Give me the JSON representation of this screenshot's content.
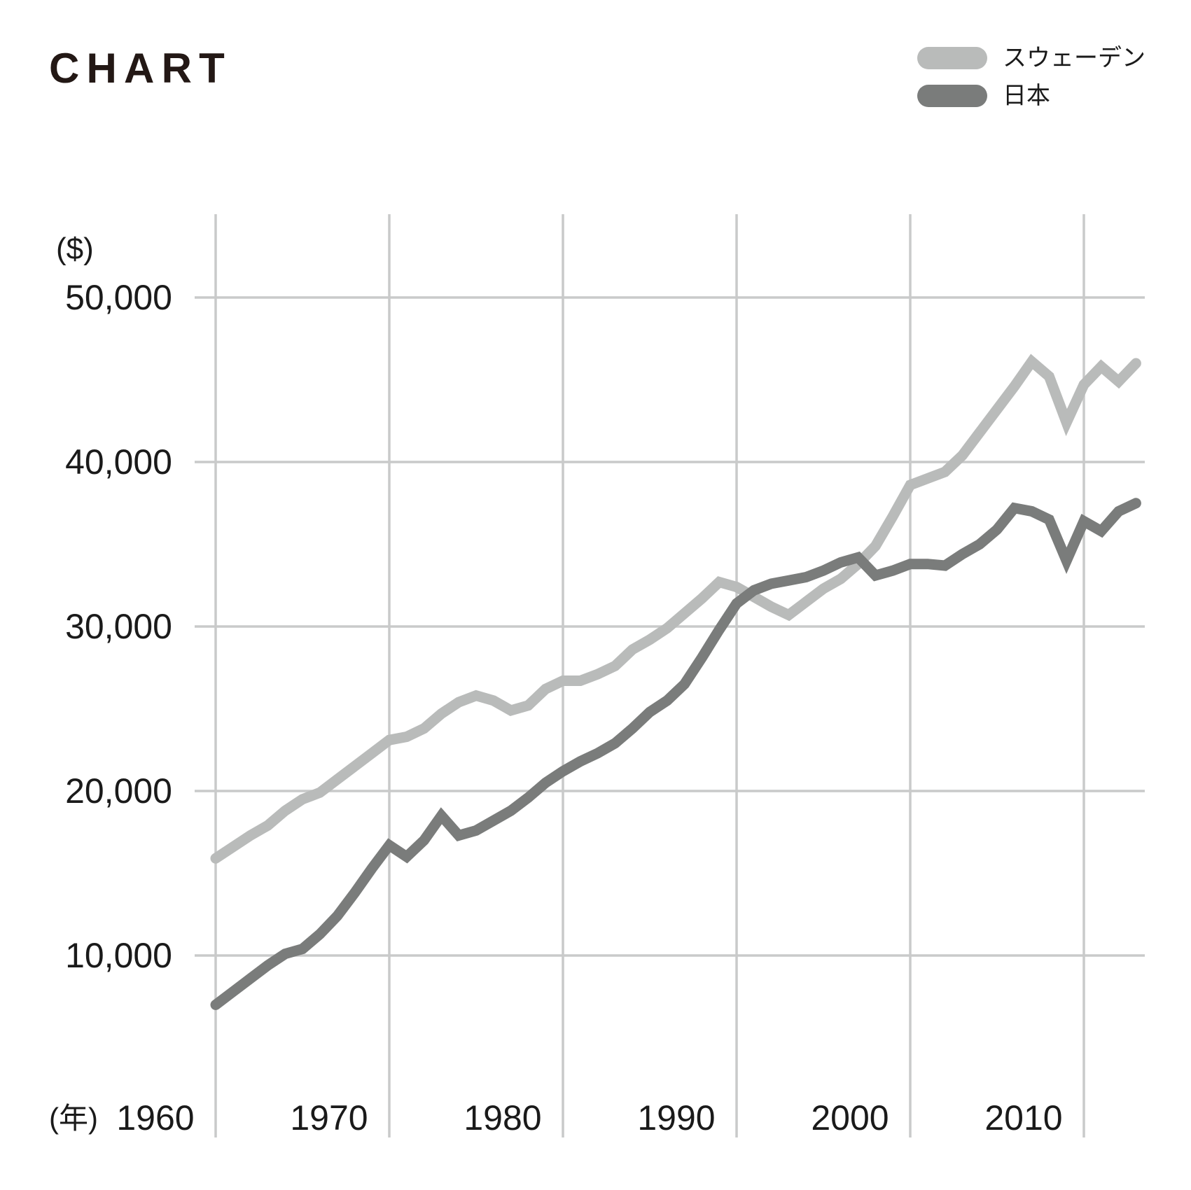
{
  "logo": "CHART",
  "colors": {
    "background": "#ffffff",
    "grid": "#c9caca",
    "text": "#1a1a1a",
    "logo": "#231815",
    "sweden": "#b9bbba",
    "japan": "#7a7c7b"
  },
  "legend": {
    "items": [
      {
        "label": "スウェーデン",
        "color_key": "sweden"
      },
      {
        "label": "日本",
        "color_key": "japan"
      }
    ]
  },
  "axes": {
    "y_unit_label": "($)",
    "x_unit_label": "(年)",
    "y_ticks": [
      {
        "value": 50000,
        "label": "50,000"
      },
      {
        "value": 40000,
        "label": "40,000"
      },
      {
        "value": 30000,
        "label": "30,000"
      },
      {
        "value": 20000,
        "label": "20,000"
      },
      {
        "value": 10000,
        "label": "10,000"
      }
    ],
    "x_ticks": [
      {
        "year": 1960,
        "label": "1960"
      },
      {
        "year": 1970,
        "label": "1970"
      },
      {
        "year": 1980,
        "label": "1980"
      },
      {
        "year": 1990,
        "label": "1990"
      },
      {
        "year": 2000,
        "label": "2000"
      },
      {
        "year": 2010,
        "label": "2010"
      }
    ]
  },
  "chart_data": {
    "type": "line",
    "title": "",
    "xlabel": "(年)",
    "ylabel": "($)",
    "x_start_year": 1960,
    "x_end_year": 2013,
    "ylim": [
      5000,
      52000
    ],
    "grid": true,
    "legend_position": "top-right",
    "x": [
      1960,
      1961,
      1962,
      1963,
      1964,
      1965,
      1966,
      1967,
      1968,
      1969,
      1970,
      1971,
      1972,
      1973,
      1974,
      1975,
      1976,
      1977,
      1978,
      1979,
      1980,
      1981,
      1982,
      1983,
      1984,
      1985,
      1986,
      1987,
      1988,
      1989,
      1990,
      1991,
      1992,
      1993,
      1994,
      1995,
      1996,
      1997,
      1998,
      1999,
      2000,
      2001,
      2002,
      2003,
      2004,
      2005,
      2006,
      2007,
      2008,
      2009,
      2010,
      2011,
      2012,
      2013
    ],
    "series": [
      {
        "name": "スウェーデン",
        "color_key": "sweden",
        "values": [
          15900,
          16600,
          17300,
          17900,
          18800,
          19500,
          19900,
          20700,
          21500,
          22300,
          23100,
          23300,
          23800,
          24700,
          25400,
          25800,
          25500,
          24900,
          25200,
          26200,
          26700,
          26700,
          27100,
          27600,
          28600,
          29200,
          29900,
          30800,
          31700,
          32700,
          32400,
          31800,
          31200,
          30700,
          31500,
          32300,
          32900,
          33800,
          34900,
          36700,
          38600,
          39000,
          39400,
          40400,
          41800,
          43200,
          44600,
          46100,
          45200,
          42400,
          44700,
          45800,
          44900,
          46000
        ]
      },
      {
        "name": "日本",
        "color_key": "japan",
        "values": [
          7000,
          7800,
          8600,
          9400,
          10100,
          10400,
          11300,
          12400,
          13800,
          15300,
          16700,
          16000,
          17000,
          18500,
          17300,
          17600,
          18200,
          18800,
          19600,
          20500,
          21200,
          21800,
          22300,
          22900,
          23800,
          24800,
          25500,
          26500,
          28100,
          29800,
          31400,
          32200,
          32600,
          32800,
          33000,
          33400,
          33900,
          34200,
          33100,
          33400,
          33800,
          33800,
          33700,
          34400,
          35000,
          35900,
          37200,
          37000,
          36500,
          34000,
          36400,
          35800,
          37000,
          37500
        ]
      }
    ]
  }
}
